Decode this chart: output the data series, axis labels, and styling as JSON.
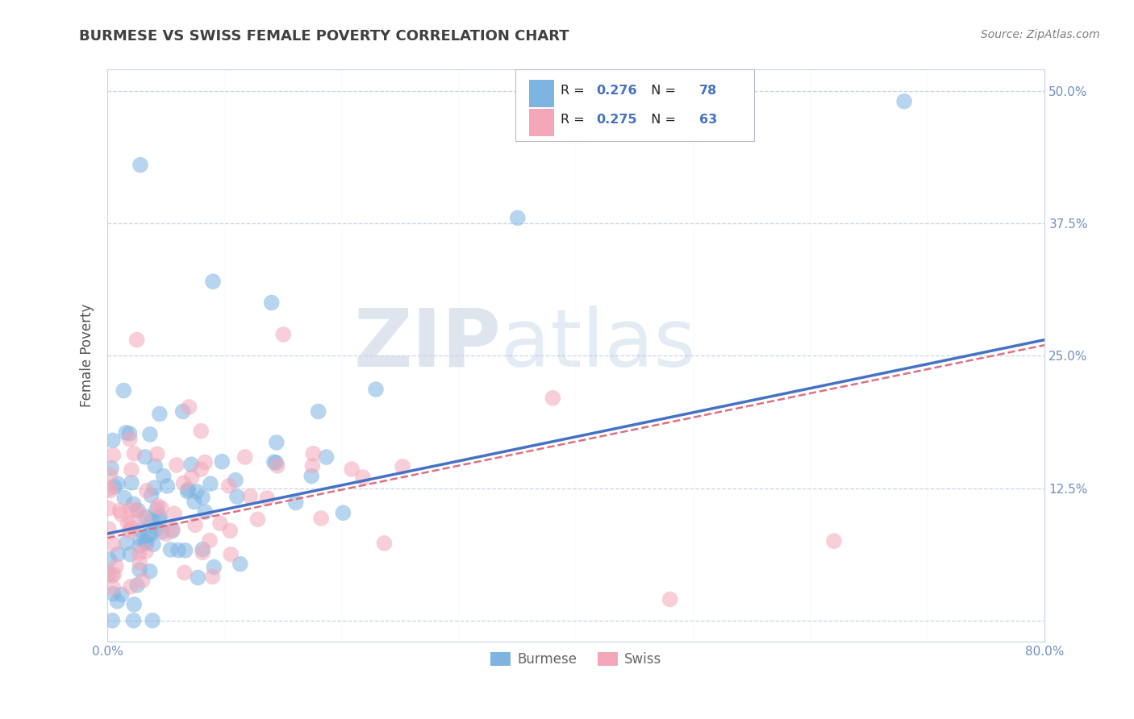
{
  "title": "BURMESE VS SWISS FEMALE POVERTY CORRELATION CHART",
  "source": "Source: ZipAtlas.com",
  "ylabel": "Female Poverty",
  "xlim": [
    0.0,
    0.8
  ],
  "ylim": [
    -0.02,
    0.52
  ],
  "ytick_positions": [
    0.0,
    0.125,
    0.25,
    0.375,
    0.5
  ],
  "ytick_labels_right": [
    "",
    "12.5%",
    "25.0%",
    "37.5%",
    "50.0%"
  ],
  "xtick_positions": [
    0.0,
    0.8
  ],
  "xtick_labels": [
    "0.0%",
    "80.0%"
  ],
  "burmese_color": "#7eb4e2",
  "swiss_color": "#f4a7b9",
  "burmese_R": 0.276,
  "burmese_N": 78,
  "swiss_R": 0.275,
  "swiss_N": 63,
  "regression_color_burmese": "#4472c4",
  "regression_color_swiss": "#e07080",
  "watermark_zip": "ZIP",
  "watermark_atlas": "atlas",
  "legend_label_burmese": "Burmese",
  "legend_label_swiss": "Swiss",
  "title_color": "#404040",
  "source_color": "#808080",
  "axis_color": "#7090c0",
  "grid_color": "#c8d4e8",
  "legend_r_n_color": "#000000",
  "legend_num_color": "#4472c4",
  "legend_box_color": "#e8eef8"
}
